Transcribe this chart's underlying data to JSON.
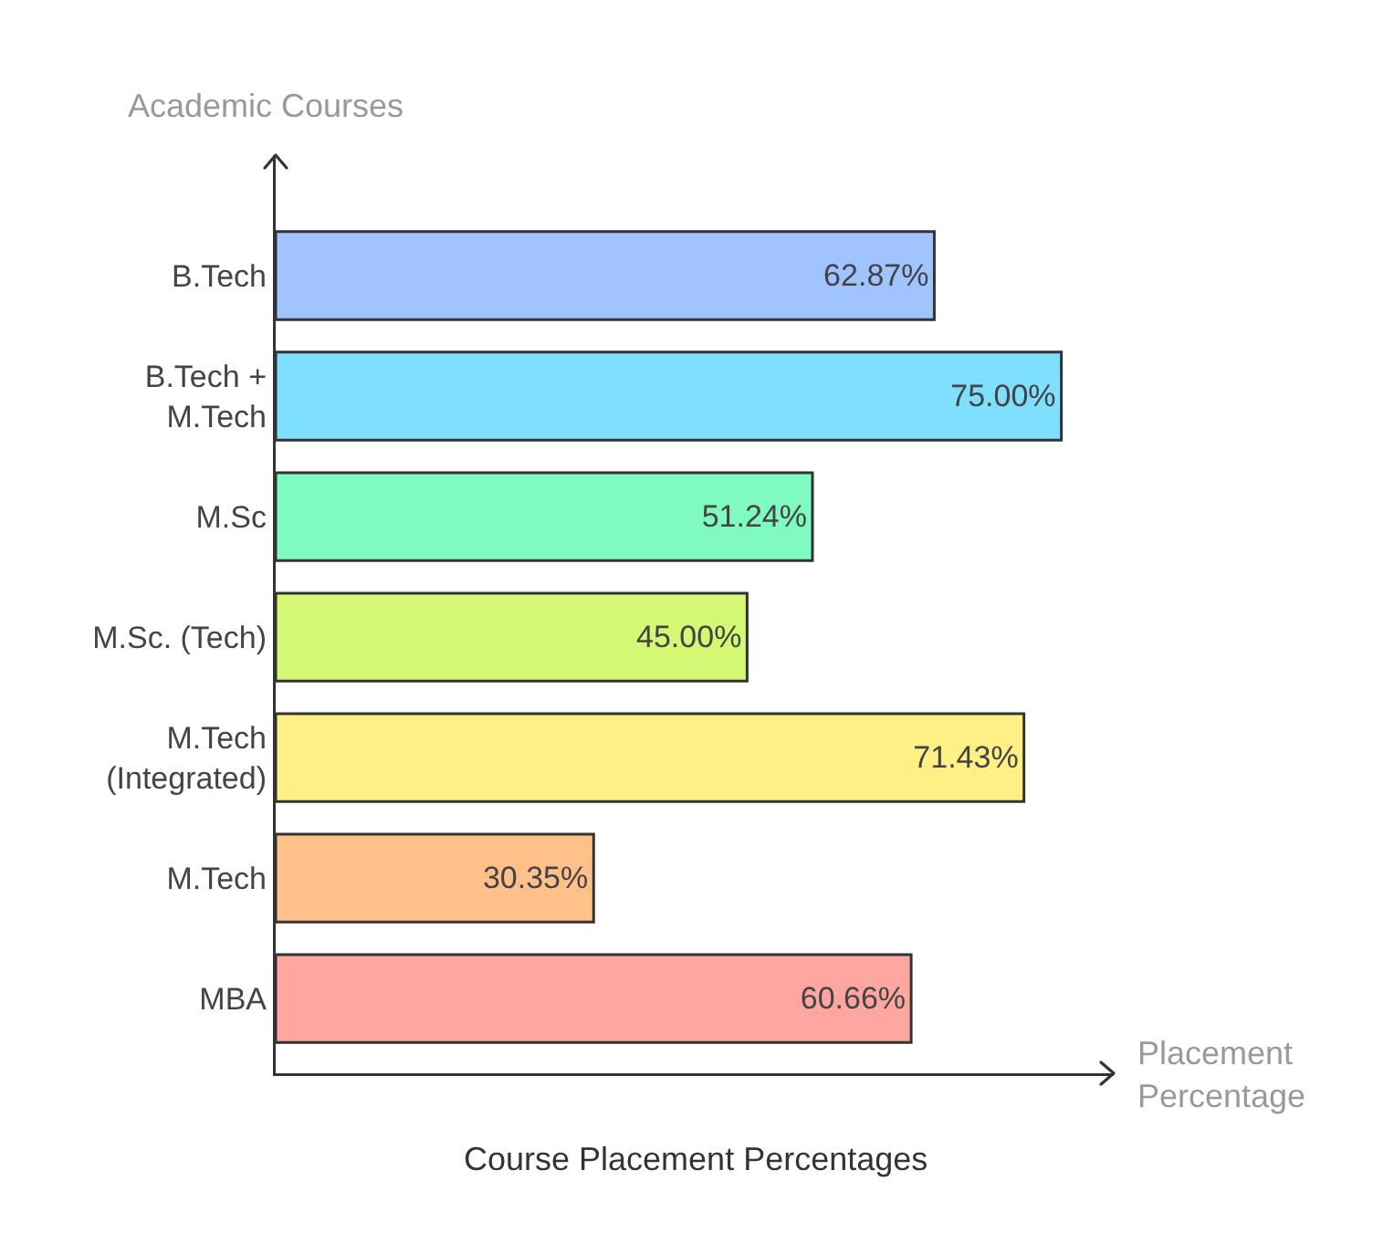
{
  "chart_data": {
    "type": "bar",
    "orientation": "horizontal",
    "title": "Course Placement Percentages",
    "xlabel": "Placement Percentage",
    "ylabel": "Academic Courses",
    "categories": [
      "B.Tech",
      "B.Tech + M.Tech",
      "M.Sc",
      "M.Sc. (Tech)",
      "M.Tech (Integrated)",
      "M.Tech",
      "MBA"
    ],
    "values": [
      62.87,
      75.0,
      51.24,
      45.0,
      71.43,
      30.35,
      60.66
    ],
    "value_labels": [
      "62.87%",
      "75.00%",
      "51.24%",
      "45.00%",
      "71.43%",
      "30.35%",
      "60.66%"
    ],
    "colors": [
      "#a0c4ff",
      "#7fdfff",
      "#7ffbc2",
      "#d4f774",
      "#fff085",
      "#ffc08a",
      "#ffa6a0"
    ],
    "xlim": [
      0,
      80
    ],
    "grid": false,
    "legend": false
  }
}
